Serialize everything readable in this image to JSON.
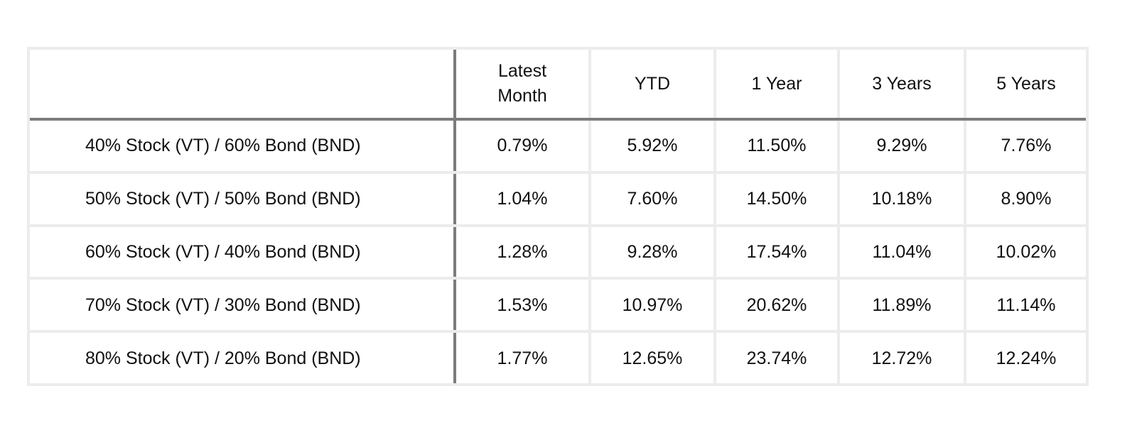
{
  "chart_data": {
    "type": "table",
    "columns": [
      "",
      "Latest Month",
      "YTD",
      "1 Year",
      "3 Years",
      "5 Years"
    ],
    "header_lines": {
      "latest_month": [
        "Latest",
        "Month"
      ]
    },
    "rows": [
      {
        "label": "40% Stock (VT) / 60% Bond (BND)",
        "latest_month": "0.79%",
        "ytd": "5.92%",
        "one_year": "11.50%",
        "three_years": "9.29%",
        "five_years": "7.76%"
      },
      {
        "label": "50% Stock (VT) / 50% Bond (BND)",
        "latest_month": "1.04%",
        "ytd": "7.60%",
        "one_year": "14.50%",
        "three_years": "10.18%",
        "five_years": "8.90%"
      },
      {
        "label": "60% Stock (VT) / 40% Bond (BND)",
        "latest_month": "1.28%",
        "ytd": "9.28%",
        "one_year": "17.54%",
        "three_years": "11.04%",
        "five_years": "10.02%"
      },
      {
        "label": "70% Stock (VT) / 30% Bond (BND)",
        "latest_month": "1.53%",
        "ytd": "10.97%",
        "one_year": "20.62%",
        "three_years": "11.89%",
        "five_years": "11.14%"
      },
      {
        "label": "80% Stock (VT) / 20% Bond (BND)",
        "latest_month": "1.77%",
        "ytd": "12.65%",
        "one_year": "23.74%",
        "three_years": "12.72%",
        "five_years": "12.24%"
      }
    ]
  },
  "colors": {
    "grid_line": "#ececec",
    "emphasis_line": "#7c7c7c",
    "text": "#111111"
  }
}
